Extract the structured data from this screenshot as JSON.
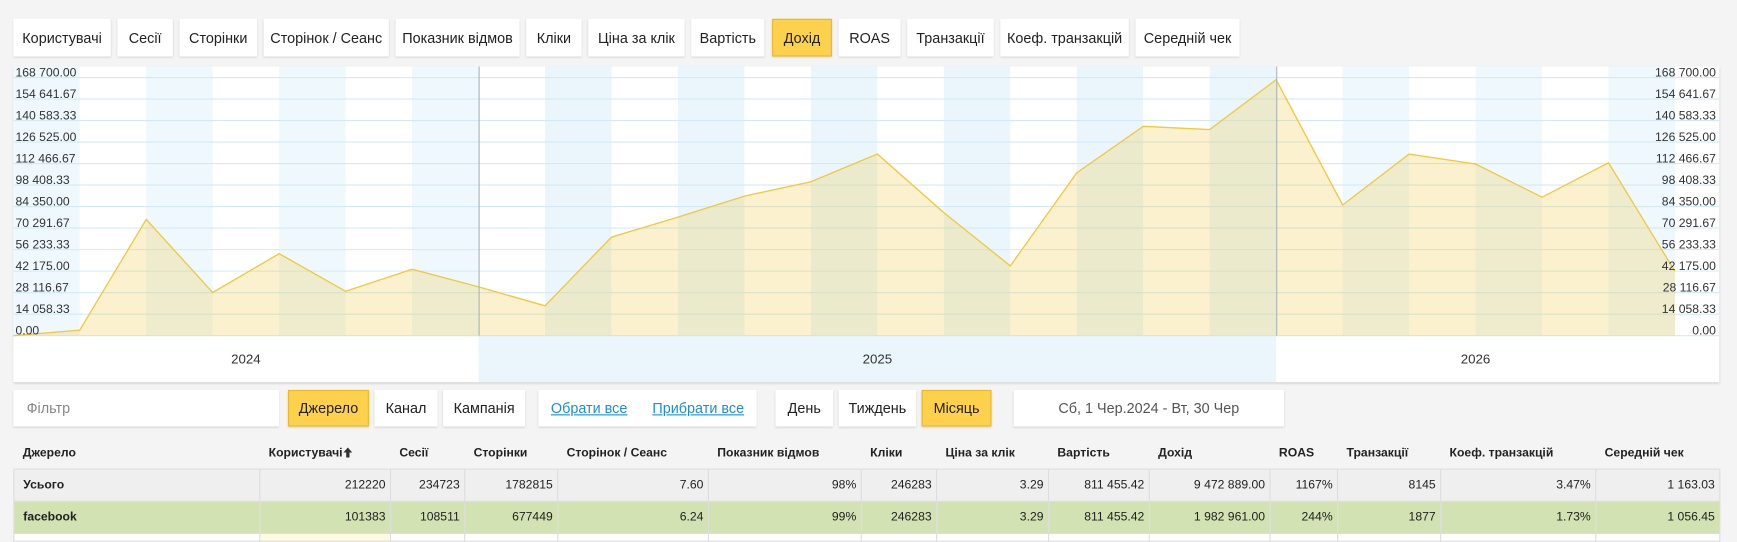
{
  "tabs": [
    "Користувачі",
    "Сесії",
    "Сторінки",
    "Сторінок / Сеанс",
    "Показник відмов",
    "Кліки",
    "Ціна за клік",
    "Вартість",
    "Дохід",
    "ROAS",
    "Транзакції",
    "Коеф. транзакцій",
    "Середній чек"
  ],
  "active_tab": 8,
  "chart_data": {
    "type": "area",
    "color": "#f0c93c",
    "values": [
      0,
      3600,
      76000,
      28200,
      53600,
      29000,
      43400,
      31900,
      19500,
      64400,
      77500,
      91200,
      100600,
      118700,
      80400,
      45600,
      106400,
      136800,
      134700,
      167300,
      85400,
      118700,
      112200,
      90500,
      113000,
      42000
    ],
    "years": [
      "2024",
      "2025",
      "2026"
    ],
    "ylim": [
      0,
      168700
    ],
    "yticks": [
      {
        "value": 0,
        "label": "0.00"
      },
      {
        "value": 14058.33,
        "label": "14 058.33"
      },
      {
        "value": 28116.67,
        "label": "28 116.67"
      },
      {
        "value": 42175,
        "label": "42 175.00"
      },
      {
        "value": 56233.33,
        "label": "56 233.33"
      },
      {
        "value": 70291.67,
        "label": "70 291.67"
      },
      {
        "value": 84350,
        "label": "84 350.00"
      },
      {
        "value": 98408.33,
        "label": "98 408.33"
      },
      {
        "value": 112466.67,
        "label": "112 466.67"
      },
      {
        "value": 126525,
        "label": "126 525.00"
      },
      {
        "value": 140583.33,
        "label": "140 583.33"
      },
      {
        "value": 154641.67,
        "label": "154 641.67"
      },
      {
        "value": 168700,
        "label": "168 700.00"
      }
    ],
    "grid": true
  },
  "controls": {
    "filter_placeholder": "Фільтр",
    "group_by": [
      "Джерело",
      "Канал",
      "Кампанія"
    ],
    "active_group": 0,
    "links": [
      "Обрати все",
      "Прибрати все"
    ],
    "periods": [
      "День",
      "Тиждень",
      "Місяць"
    ],
    "active_period": 2,
    "date_range": "Сб, 1 Чер.2024 - Вт, 30 Чер"
  },
  "table": {
    "columns": [
      "Джерело",
      "Користувачі",
      "Сесії",
      "Сторінки",
      "Сторінок / Сеанс",
      "Показник відмов",
      "Кліки",
      "Ціна за клік",
      "Вартість",
      "Дохід",
      "ROAS",
      "Транзакції",
      "Коеф. транзакцій",
      "Середній чек"
    ],
    "rows": [
      [
        "Усього",
        "212220",
        "234723",
        "1782815",
        "7.60",
        "98%",
        "246283",
        "3.29",
        "811 455.42",
        "9 472 889.00",
        "1167%",
        "8145",
        "3.47%",
        "1 163.03"
      ],
      [
        "facebook",
        "101383",
        "108511",
        "677449",
        "6.24",
        "99%",
        "246283",
        "3.29",
        "811 455.42",
        "1 982 961.00",
        "244%",
        "1877",
        "1.73%",
        "1 056.45"
      ]
    ]
  }
}
